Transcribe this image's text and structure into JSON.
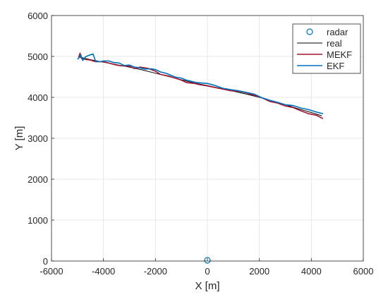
{
  "chart_data": {
    "type": "line",
    "title": "",
    "xlabel": "X [m]",
    "ylabel": "Y [m]",
    "xlim": [
      -6000,
      6000
    ],
    "ylim": [
      0,
      6000
    ],
    "xticks": [
      -6000,
      -4000,
      -2000,
      0,
      2000,
      4000,
      6000
    ],
    "yticks": [
      0,
      1000,
      2000,
      3000,
      4000,
      5000,
      6000
    ],
    "xtick_labels": [
      "-6000",
      "-4000",
      "-2000",
      "0",
      "2000",
      "4000",
      "6000"
    ],
    "ytick_labels": [
      "0",
      "1000",
      "2000",
      "3000",
      "4000",
      "5000",
      "6000"
    ],
    "grid": true,
    "legend_position": "top-right",
    "markers": [
      {
        "name": "radar",
        "color": "#0072bd",
        "marker": "circle",
        "x": 0,
        "y": 0
      }
    ],
    "series": [
      {
        "name": "real",
        "color": "#000000",
        "points": [
          [
            -4950,
            4990
          ],
          [
            -4500,
            4920
          ],
          [
            -4000,
            4860
          ],
          [
            -3500,
            4800
          ],
          [
            -3000,
            4740
          ],
          [
            -2500,
            4670
          ],
          [
            -2000,
            4590
          ],
          [
            -1500,
            4510
          ],
          [
            -1000,
            4430
          ],
          [
            -500,
            4350
          ],
          [
            0,
            4290
          ],
          [
            500,
            4220
          ],
          [
            1000,
            4150
          ],
          [
            1500,
            4080
          ],
          [
            2000,
            4000
          ],
          [
            2500,
            3910
          ],
          [
            3000,
            3820
          ],
          [
            3500,
            3720
          ],
          [
            4000,
            3630
          ],
          [
            4400,
            3550
          ]
        ]
      },
      {
        "name": "MEKF",
        "color": "#a2142f",
        "points": [
          [
            -4960,
            4970
          ],
          [
            -4900,
            5080
          ],
          [
            -4850,
            4950
          ],
          [
            -4700,
            4930
          ],
          [
            -4500,
            4910
          ],
          [
            -4300,
            4870
          ],
          [
            -4000,
            4870
          ],
          [
            -3800,
            4840
          ],
          [
            -3500,
            4790
          ],
          [
            -3300,
            4770
          ],
          [
            -3000,
            4760
          ],
          [
            -2800,
            4700
          ],
          [
            -2600,
            4740
          ],
          [
            -2300,
            4710
          ],
          [
            -2000,
            4640
          ],
          [
            -1800,
            4560
          ],
          [
            -1500,
            4520
          ],
          [
            -1200,
            4460
          ],
          [
            -1000,
            4420
          ],
          [
            -800,
            4360
          ],
          [
            -500,
            4340
          ],
          [
            -300,
            4310
          ],
          [
            0,
            4280
          ],
          [
            300,
            4240
          ],
          [
            600,
            4200
          ],
          [
            900,
            4160
          ],
          [
            1200,
            4150
          ],
          [
            1500,
            4110
          ],
          [
            1800,
            4050
          ],
          [
            2100,
            3990
          ],
          [
            2400,
            3900
          ],
          [
            2700,
            3860
          ],
          [
            3000,
            3790
          ],
          [
            3300,
            3750
          ],
          [
            3600,
            3670
          ],
          [
            3900,
            3600
          ],
          [
            4200,
            3560
          ],
          [
            4450,
            3480
          ]
        ]
      },
      {
        "name": "EKF",
        "color": "#0072bd",
        "points": [
          [
            -5000,
            4930
          ],
          [
            -4950,
            4960
          ],
          [
            -4870,
            5040
          ],
          [
            -4800,
            4900
          ],
          [
            -4700,
            4990
          ],
          [
            -4550,
            5030
          ],
          [
            -4400,
            5060
          ],
          [
            -4300,
            4880
          ],
          [
            -4150,
            4870
          ],
          [
            -4000,
            4890
          ],
          [
            -3800,
            4890
          ],
          [
            -3600,
            4850
          ],
          [
            -3400,
            4840
          ],
          [
            -3200,
            4780
          ],
          [
            -3000,
            4790
          ],
          [
            -2800,
            4740
          ],
          [
            -2600,
            4720
          ],
          [
            -2400,
            4690
          ],
          [
            -2200,
            4700
          ],
          [
            -2000,
            4680
          ],
          [
            -1800,
            4620
          ],
          [
            -1600,
            4590
          ],
          [
            -1400,
            4540
          ],
          [
            -1200,
            4490
          ],
          [
            -1000,
            4470
          ],
          [
            -800,
            4420
          ],
          [
            -600,
            4390
          ],
          [
            -400,
            4360
          ],
          [
            -200,
            4350
          ],
          [
            0,
            4340
          ],
          [
            300,
            4290
          ],
          [
            600,
            4220
          ],
          [
            900,
            4190
          ],
          [
            1200,
            4160
          ],
          [
            1500,
            4120
          ],
          [
            1800,
            4080
          ],
          [
            2100,
            3990
          ],
          [
            2400,
            3930
          ],
          [
            2700,
            3880
          ],
          [
            3000,
            3820
          ],
          [
            3300,
            3800
          ],
          [
            3600,
            3740
          ],
          [
            3900,
            3700
          ],
          [
            4200,
            3640
          ],
          [
            4450,
            3600
          ]
        ]
      }
    ]
  }
}
